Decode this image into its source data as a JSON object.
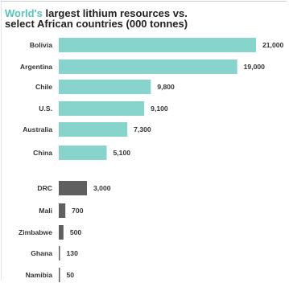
{
  "title": {
    "accent": "World's",
    "rest_line1": " largest lithium resources vs.",
    "line2": "select African countries (000 tonnes)"
  },
  "colors": {
    "world": "#86d4cb",
    "africa": "#5f5f5f",
    "accent": "#56c5b8"
  },
  "chart_data": {
    "type": "bar",
    "orientation": "horizontal",
    "title": "World's largest lithium resources vs. select African countries (000 tonnes)",
    "categories": [
      "Bolivia",
      "Argentina",
      "Chile",
      "U.S.",
      "Australia",
      "China",
      "DRC",
      "Mali",
      "Zimbabwe",
      "Ghana",
      "Namibia"
    ],
    "series": [
      {
        "values": [
          21000,
          19000,
          9800,
          9100,
          7300,
          5100,
          null,
          null,
          null,
          null,
          null
        ]
      },
      {
        "values": [
          null,
          null,
          null,
          null,
          null,
          null,
          3000,
          700,
          500,
          130,
          50
        ]
      }
    ],
    "value_labels": [
      "21,000",
      "19,000",
      "9,800",
      "9,100",
      "7,300",
      "5,100",
      "3,000",
      "700",
      "500",
      "130",
      "50"
    ],
    "xlim": [
      0,
      21000
    ],
    "grid": false,
    "axes_visible": false
  }
}
